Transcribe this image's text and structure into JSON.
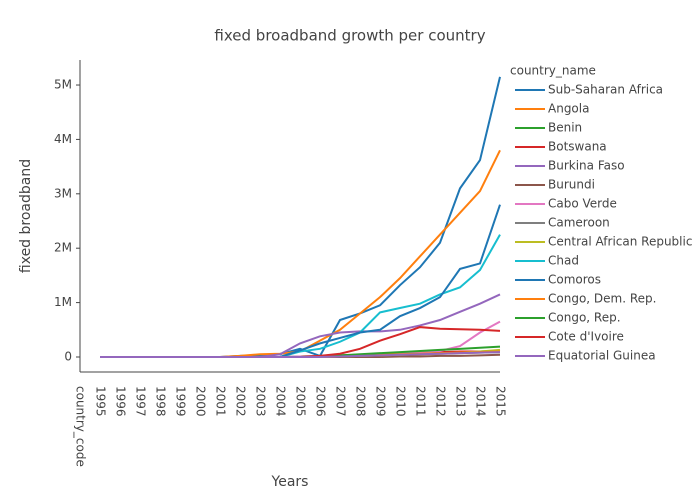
{
  "chart_data": {
    "type": "line",
    "title": "fixed broadband  growth  per country",
    "x_label": "Years",
    "y_label": "fixed broadband",
    "legend_title": "country_name",
    "categories": [
      "country_code",
      "1995",
      "1996",
      "1997",
      "1998",
      "1999",
      "2000",
      "2001",
      "2002",
      "2003",
      "2004",
      "2005",
      "2006",
      "2007",
      "2008",
      "2009",
      "2010",
      "2011",
      "2012",
      "2013",
      "2014",
      "2015"
    ],
    "ylim": [
      -276000,
      5460000
    ],
    "yticks": [
      0,
      {
        "value": 1000000,
        "label": "1M"
      },
      {
        "value": 2000000,
        "label": "2M"
      },
      {
        "value": 3000000,
        "label": "3M"
      },
      {
        "value": 4000000,
        "label": "4M"
      },
      {
        "value": 5000000,
        "label": "5M"
      }
    ],
    "grid": false,
    "series": [
      {
        "name": "Sub-Saharan Africa",
        "color": "#1f77b4",
        "values": [
          null,
          0,
          0,
          0,
          0,
          0,
          0,
          0,
          20000,
          30000,
          50000,
          150000,
          20000,
          680000,
          800000,
          950000,
          1320000,
          1650000,
          2100000,
          3100000,
          3620000,
          5150000
        ]
      },
      {
        "name": "Angola",
        "color": "#ff7f0e",
        "values": [
          null,
          0,
          0,
          0,
          0,
          0,
          0,
          0,
          20000,
          50000,
          60000,
          100000,
          300000,
          500000,
          800000,
          1100000,
          1450000,
          1850000,
          2250000,
          2650000,
          3050000,
          3800000
        ]
      },
      {
        "name": "Benin",
        "color": "#2ca02c",
        "values": [
          null,
          0,
          0,
          0,
          0,
          0,
          0,
          0,
          0,
          0,
          0,
          10000,
          20000,
          30000,
          40000,
          50000,
          60000,
          70000,
          80000,
          90000,
          100000,
          110000
        ]
      },
      {
        "name": "Botswana",
        "color": "#d62728",
        "values": [
          null,
          0,
          0,
          0,
          0,
          0,
          0,
          0,
          0,
          0,
          0,
          0,
          10000,
          20000,
          40000,
          60000,
          80000,
          90000,
          90000,
          100000,
          100000,
          110000
        ]
      },
      {
        "name": "Burkina Faso",
        "color": "#9467bd",
        "values": [
          null,
          0,
          0,
          0,
          0,
          0,
          0,
          0,
          0,
          0,
          50000,
          250000,
          380000,
          450000,
          470000,
          470000,
          500000,
          580000,
          680000,
          830000,
          980000,
          1150000
        ]
      },
      {
        "name": "Burundi",
        "color": "#8c564b",
        "values": [
          null,
          0,
          0,
          0,
          0,
          0,
          0,
          0,
          0,
          0,
          0,
          0,
          0,
          0,
          0,
          0,
          10000,
          10000,
          20000,
          20000,
          30000,
          40000
        ]
      },
      {
        "name": "Cabo Verde",
        "color": "#e377c2",
        "values": [
          null,
          0,
          0,
          0,
          0,
          0,
          0,
          0,
          0,
          0,
          0,
          10000,
          20000,
          30000,
          40000,
          50000,
          70000,
          90000,
          110000,
          200000,
          450000,
          650000
        ]
      },
      {
        "name": "Cameroon",
        "color": "#7f7f7f",
        "values": [
          null,
          0,
          0,
          0,
          0,
          0,
          0,
          0,
          0,
          0,
          0,
          0,
          10000,
          10000,
          20000,
          30000,
          40000,
          50000,
          60000,
          70000,
          80000,
          90000
        ]
      },
      {
        "name": "Central African Republic",
        "color": "#bcbd22",
        "values": [
          null,
          0,
          0,
          0,
          0,
          0,
          0,
          0,
          0,
          0,
          0,
          0,
          0,
          10000,
          20000,
          30000,
          40000,
          50000,
          60000,
          80000,
          100000,
          130000
        ]
      },
      {
        "name": "Chad",
        "color": "#17becf",
        "values": [
          null,
          0,
          0,
          0,
          0,
          0,
          0,
          0,
          0,
          0,
          0,
          100000,
          150000,
          280000,
          450000,
          820000,
          900000,
          980000,
          1150000,
          1280000,
          1600000,
          2250000
        ]
      },
      {
        "name": "Comoros",
        "color": "#1f77b4",
        "values": [
          null,
          0,
          0,
          0,
          0,
          0,
          0,
          0,
          0,
          0,
          0,
          120000,
          250000,
          350000,
          450000,
          500000,
          750000,
          900000,
          1100000,
          1620000,
          1720000,
          2800000
        ]
      },
      {
        "name": "Congo, Dem. Rep.",
        "color": "#ff7f0e",
        "values": [
          null,
          0,
          0,
          0,
          0,
          0,
          0,
          0,
          0,
          0,
          0,
          0,
          10000,
          20000,
          30000,
          40000,
          50000,
          60000,
          70000,
          80000,
          90000,
          100000
        ]
      },
      {
        "name": "Congo, Rep.",
        "color": "#2ca02c",
        "values": [
          null,
          0,
          0,
          0,
          0,
          0,
          0,
          0,
          0,
          0,
          0,
          0,
          10000,
          30000,
          50000,
          70000,
          90000,
          110000,
          130000,
          150000,
          170000,
          190000
        ]
      },
      {
        "name": "Cote d'Ivoire",
        "color": "#d62728",
        "values": [
          null,
          0,
          0,
          0,
          0,
          0,
          0,
          0,
          0,
          0,
          0,
          0,
          20000,
          60000,
          150000,
          300000,
          420000,
          550000,
          520000,
          510000,
          500000,
          480000
        ]
      },
      {
        "name": "Equatorial Guinea",
        "color": "#9467bd",
        "values": [
          null,
          0,
          0,
          0,
          0,
          0,
          0,
          0,
          0,
          0,
          0,
          0,
          0,
          10000,
          20000,
          30000,
          40000,
          50000,
          60000,
          70000,
          80000,
          90000
        ]
      }
    ]
  }
}
